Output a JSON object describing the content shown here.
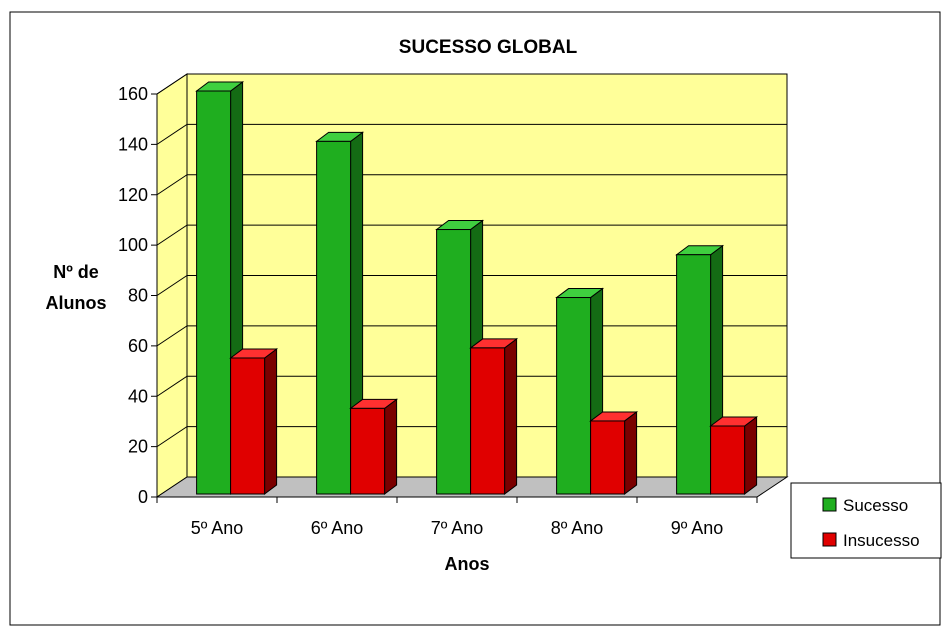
{
  "chart_data": {
    "type": "bar",
    "title": "SUCESSO GLOBAL",
    "xlabel": "Anos",
    "ylabel_lines": [
      "Nº de",
      "Alunos"
    ],
    "categories": [
      "5º Ano",
      "6º Ano",
      "7º Ano",
      "8º Ano",
      "9º Ano"
    ],
    "series": [
      {
        "name": "Sucesso",
        "values": [
          160,
          140,
          105,
          78,
          95
        ],
        "color": "#1fae1f",
        "side_color": "#146b14",
        "top_color": "#3fcf3f"
      },
      {
        "name": "Insucesso",
        "values": [
          54,
          34,
          58,
          29,
          27
        ],
        "color": "#e00000",
        "side_color": "#7a0000",
        "top_color": "#ff3030"
      }
    ],
    "ylim": [
      0,
      160
    ],
    "yticks": [
      0,
      20,
      40,
      60,
      80,
      100,
      120,
      140,
      160
    ],
    "grid": true,
    "wall_color": "#ffff99",
    "floor_color": "#c0c0c0",
    "legend_position": "right"
  }
}
